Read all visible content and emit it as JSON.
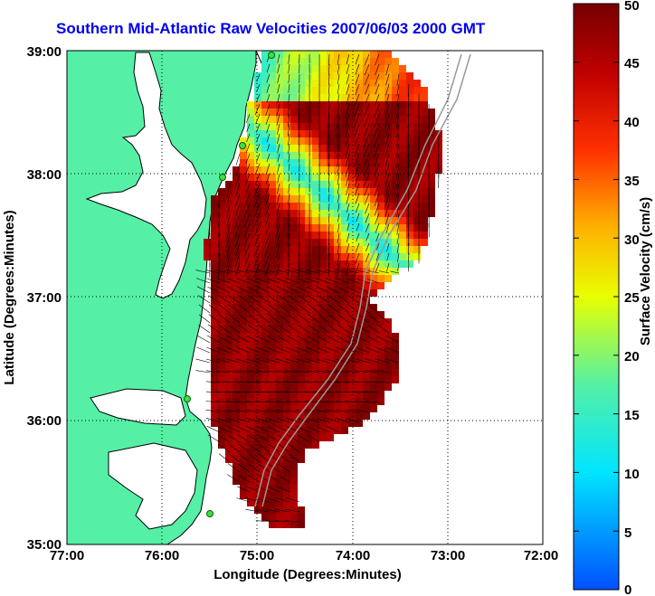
{
  "title": "Southern Mid-Atlantic Raw Velocities 2007/06/03 2000 GMT",
  "x_axis": {
    "label": "Longitude (Degrees:Minutes)",
    "ticks": [
      "77:00",
      "76:00",
      "75:00",
      "74:00",
      "73:00",
      "72:00"
    ]
  },
  "y_axis": {
    "label": "Latitude (Degrees:Minutes)",
    "ticks": [
      "39:00",
      "38:00",
      "37:00",
      "36:00",
      "35:00"
    ]
  },
  "colorbar": {
    "label": "Surface Velocity (cm/s)",
    "ticks": [
      "50",
      "45",
      "40",
      "35",
      "30",
      "25",
      "20",
      "15",
      "10",
      "5",
      "0"
    ],
    "min": 0,
    "max": 50
  },
  "colors": {
    "land": "#55f0a5",
    "ocean": "#ffffff",
    "title": "#0000ee"
  }
}
